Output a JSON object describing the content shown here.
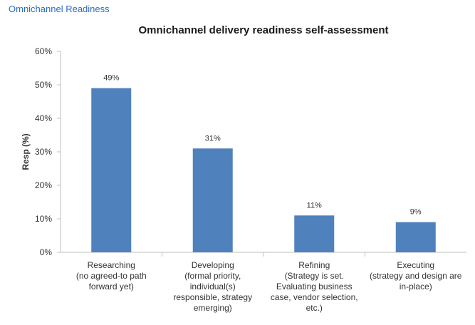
{
  "header": {
    "title": "Omnichannel  Readiness"
  },
  "chart_data": {
    "type": "bar",
    "title": "Omnichannel delivery readiness self-assessment",
    "xlabel": "",
    "ylabel": "Resp (%)",
    "categories": [
      [
        "Researching",
        "(no agreed-to path",
        "forward yet)"
      ],
      [
        "Developing",
        "(formal priority,",
        "individual(s)",
        "responsible, strategy",
        "emerging)"
      ],
      [
        "Refining",
        "(Strategy is set.",
        "Evaluating business",
        "case, vendor selection,",
        "etc.)"
      ],
      [
        "Executing",
        "(strategy and design are",
        "in-place)"
      ]
    ],
    "values": [
      49,
      31,
      11,
      9
    ],
    "data_labels": [
      "49%",
      "31%",
      "11%",
      "9%"
    ],
    "ylim": [
      0,
      60
    ],
    "yticks": [
      0,
      10,
      20,
      30,
      40,
      50,
      60
    ],
    "ytick_labels": [
      "0%",
      "10%",
      "20%",
      "30%",
      "40%",
      "50%",
      "60%"
    ],
    "grid": false,
    "bar_color": "#4f81bd",
    "axis_color": "#bfbfbf"
  }
}
